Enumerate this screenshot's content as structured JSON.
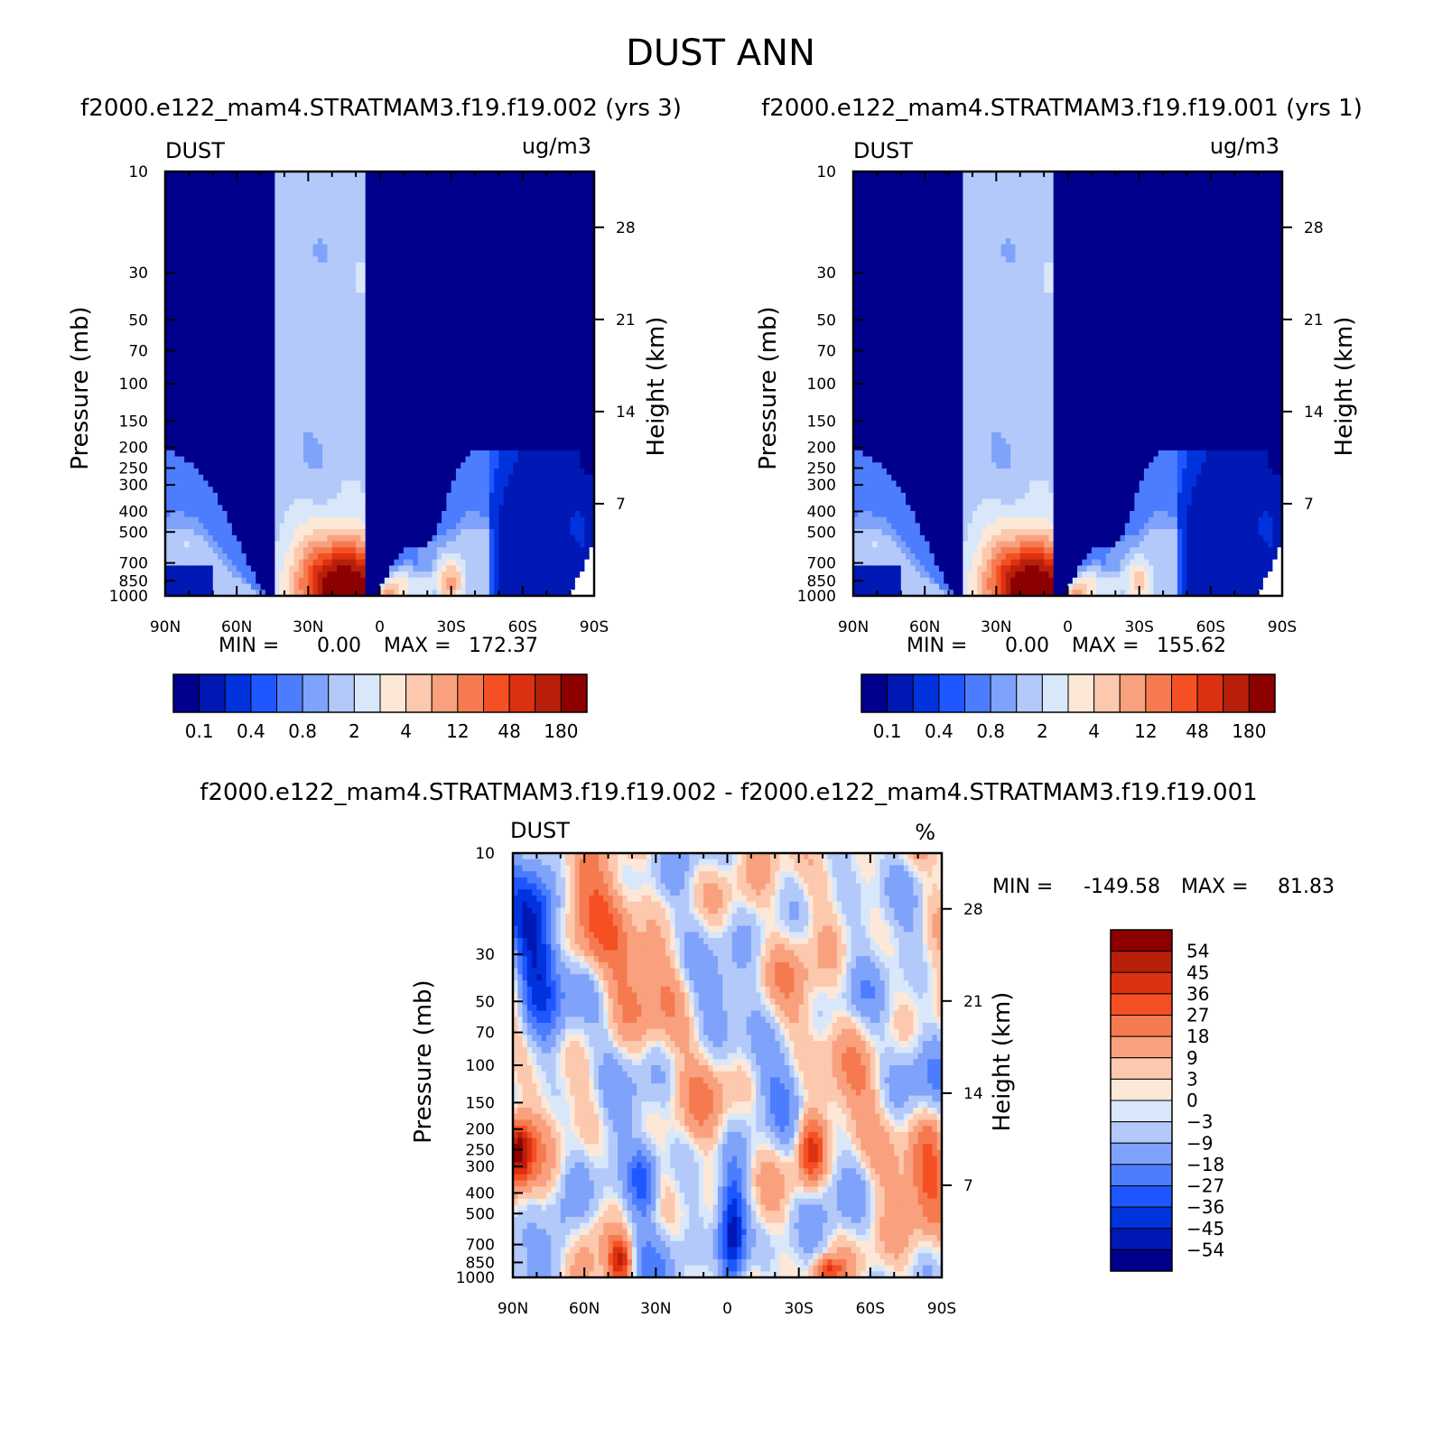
{
  "figure_title": "DUST ANN",
  "colors": {
    "abs_levels": [
      "#00008c",
      "#0018b4",
      "#0033dd",
      "#1e56ff",
      "#4d7dff",
      "#7fa2fa",
      "#b3c9fa",
      "#d8e8fa",
      "#fde8d8",
      "#fcc8ae",
      "#f9a17e",
      "#f67a50",
      "#f54f24",
      "#dc3110",
      "#b81f0a",
      "#8c0000"
    ],
    "diff_levels": [
      "#00008c",
      "#0018b4",
      "#0033dd",
      "#1e56ff",
      "#4d7dff",
      "#7fa2fa",
      "#b3c9fa",
      "#d8e8fa",
      "#fde8d8",
      "#fcc8ae",
      "#f9a17e",
      "#f67a50",
      "#f54f24",
      "#dc3110",
      "#b81f0a",
      "#8c0000"
    ]
  },
  "chart_data": [
    {
      "type": "heatmap",
      "subtitle": "f2000.e122_mam4.STRATMAM3.f19.f19.002 (yrs 3)",
      "left_label": "DUST",
      "units": "ug/m3",
      "ylabel": "Pressure (mb)",
      "ylabel2": "Height (km)",
      "xticks": [
        "90N",
        "60N",
        "30N",
        "0",
        "30S",
        "60S",
        "90S"
      ],
      "yticks": [
        "10",
        "30",
        "50",
        "70",
        "100",
        "150",
        "200",
        "250",
        "300",
        "400",
        "500",
        "700",
        "850",
        "1000"
      ],
      "yticks2": [
        "28",
        "21",
        "14",
        "7"
      ],
      "stats": {
        "min_label": "MIN =",
        "min": "0.00",
        "max_label": "MAX =",
        "max": "172.37"
      },
      "colorbar_labels": [
        "0.1",
        "0.4",
        "0.8",
        "2",
        "4",
        "12",
        "48",
        "180"
      ],
      "colorbar_levels": 16,
      "peak_level": 15,
      "peak_lat": 15,
      "peak_p": 900,
      "secondary_peak": {
        "lat": -30,
        "p": 880,
        "level": 10
      }
    },
    {
      "type": "heatmap",
      "subtitle": "f2000.e122_mam4.STRATMAM3.f19.f19.001 (yrs 1)",
      "left_label": "DUST",
      "units": "ug/m3",
      "ylabel": "Pressure (mb)",
      "ylabel2": "Height (km)",
      "xticks": [
        "90N",
        "60N",
        "30N",
        "0",
        "30S",
        "60S",
        "90S"
      ],
      "yticks": [
        "10",
        "30",
        "50",
        "70",
        "100",
        "150",
        "200",
        "250",
        "300",
        "400",
        "500",
        "700",
        "850",
        "1000"
      ],
      "yticks2": [
        "28",
        "21",
        "14",
        "7"
      ],
      "stats": {
        "min_label": "MIN =",
        "min": "0.00",
        "max_label": "MAX =",
        "max": "155.62"
      },
      "colorbar_labels": [
        "0.1",
        "0.4",
        "0.8",
        "2",
        "4",
        "12",
        "48",
        "180"
      ],
      "colorbar_levels": 16,
      "peak_level": 15,
      "peak_lat": 15,
      "peak_p": 900,
      "secondary_peak": {
        "lat": -30,
        "p": 880,
        "level": 9
      }
    },
    {
      "type": "heatmap",
      "subtitle": "f2000.e122_mam4.STRATMAM3.f19.f19.002 - f2000.e122_mam4.STRATMAM3.f19.f19.001",
      "left_label": "DUST",
      "units": "%",
      "ylabel": "Pressure (mb)",
      "ylabel2": "Height (km)",
      "xticks": [
        "90N",
        "60N",
        "30N",
        "0",
        "30S",
        "60S",
        "90S"
      ],
      "yticks": [
        "10",
        "30",
        "50",
        "70",
        "100",
        "150",
        "200",
        "250",
        "300",
        "400",
        "500",
        "700",
        "850",
        "1000"
      ],
      "yticks2": [
        "28",
        "21",
        "14",
        "7"
      ],
      "stats": {
        "min_label": "MIN =",
        "min": "-149.58",
        "max_label": "MAX =",
        "max": "81.83"
      },
      "colorbar_labels": [
        "54",
        "45",
        "36",
        "27",
        "18",
        "9",
        "3",
        "0",
        "-3",
        "-9",
        "-18",
        "-27",
        "-36",
        "-45",
        "-54"
      ],
      "colorbar_levels": 16
    }
  ]
}
